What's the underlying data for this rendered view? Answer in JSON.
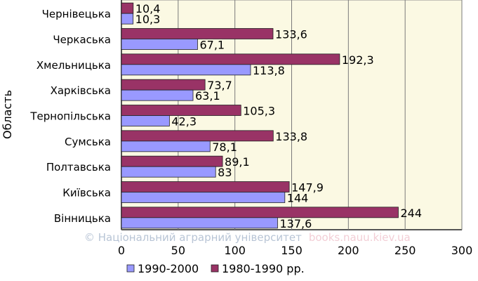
{
  "chart_data": {
    "type": "bar",
    "orientation": "horizontal",
    "ylabel": "Область",
    "categories": [
      "Чернівецька",
      "Черкаська",
      "Хмельницька",
      "Харківська",
      "Тернопільська",
      "Сумська",
      "Полтавська",
      "Київська",
      "Вінницька"
    ],
    "series": [
      {
        "name": "1990-2000",
        "color": "#9999ff",
        "values": [
          10.3,
          67.1,
          113.8,
          63.1,
          42.3,
          78.1,
          83,
          144,
          137.6
        ],
        "labels": [
          "10,3",
          "67,1",
          "113,8",
          "63,1",
          "42,3",
          "78,1",
          "83",
          "144",
          "137,6"
        ]
      },
      {
        "name": "1980-1990 рр.",
        "color": "#993366",
        "values": [
          10.4,
          133.6,
          192.3,
          73.7,
          105.3,
          133.8,
          89.1,
          147.9,
          244
        ],
        "labels": [
          "10,4",
          "133,6",
          "192,3",
          "73,7",
          "105,3",
          "133,8",
          "89,1",
          "147,9",
          "244"
        ]
      }
    ],
    "xlim": [
      0,
      300
    ],
    "xticks": [
      0,
      50,
      100,
      150,
      200,
      250,
      300
    ],
    "grid": true,
    "plot_background": "#fbf9e3",
    "legend_position": "bottom"
  },
  "watermark": {
    "text": "©  Національний аграрний університет",
    "url": "books.nauu.kiev.ua"
  }
}
